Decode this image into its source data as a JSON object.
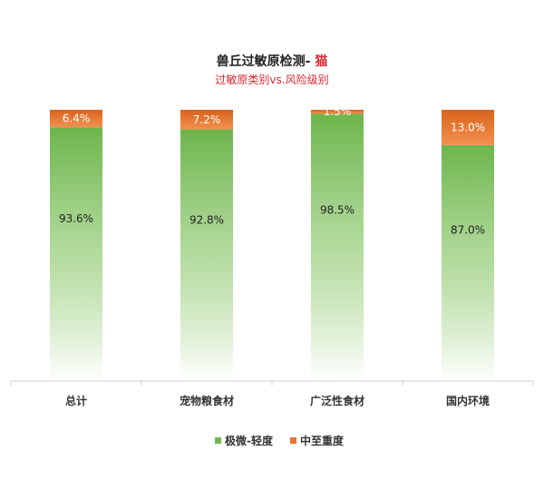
{
  "chart_data": {
    "type": "bar",
    "stacked": true,
    "percent_stacked": true,
    "title_prefix": "兽丘过敏原检测- ",
    "title_highlight": "猫",
    "subtitle": "过敏原类别vs.风险级别",
    "categories": [
      "总计",
      "宠物粮食材",
      "广泛性食材",
      "国内环境"
    ],
    "series": [
      {
        "name": "极微-轻度",
        "values": [
          93.6,
          92.8,
          98.5,
          87.0
        ],
        "labels": [
          "93.6%",
          "92.8%",
          "98.5%",
          "87.0%"
        ]
      },
      {
        "name": "中至重度",
        "values": [
          6.4,
          7.2,
          1.5,
          13.0
        ],
        "labels": [
          "6.4%",
          "7.2%",
          "1.5%",
          "13.0%"
        ]
      }
    ],
    "ylim": [
      0,
      100
    ],
    "grid": false,
    "legend_position": "bottom",
    "colors": {
      "mild": "#70b64f",
      "severe": "#e8742e",
      "title": "#222222",
      "highlight": "#d9282f",
      "subtitle": "#d9282f",
      "axis": "#d0d0d0"
    }
  }
}
